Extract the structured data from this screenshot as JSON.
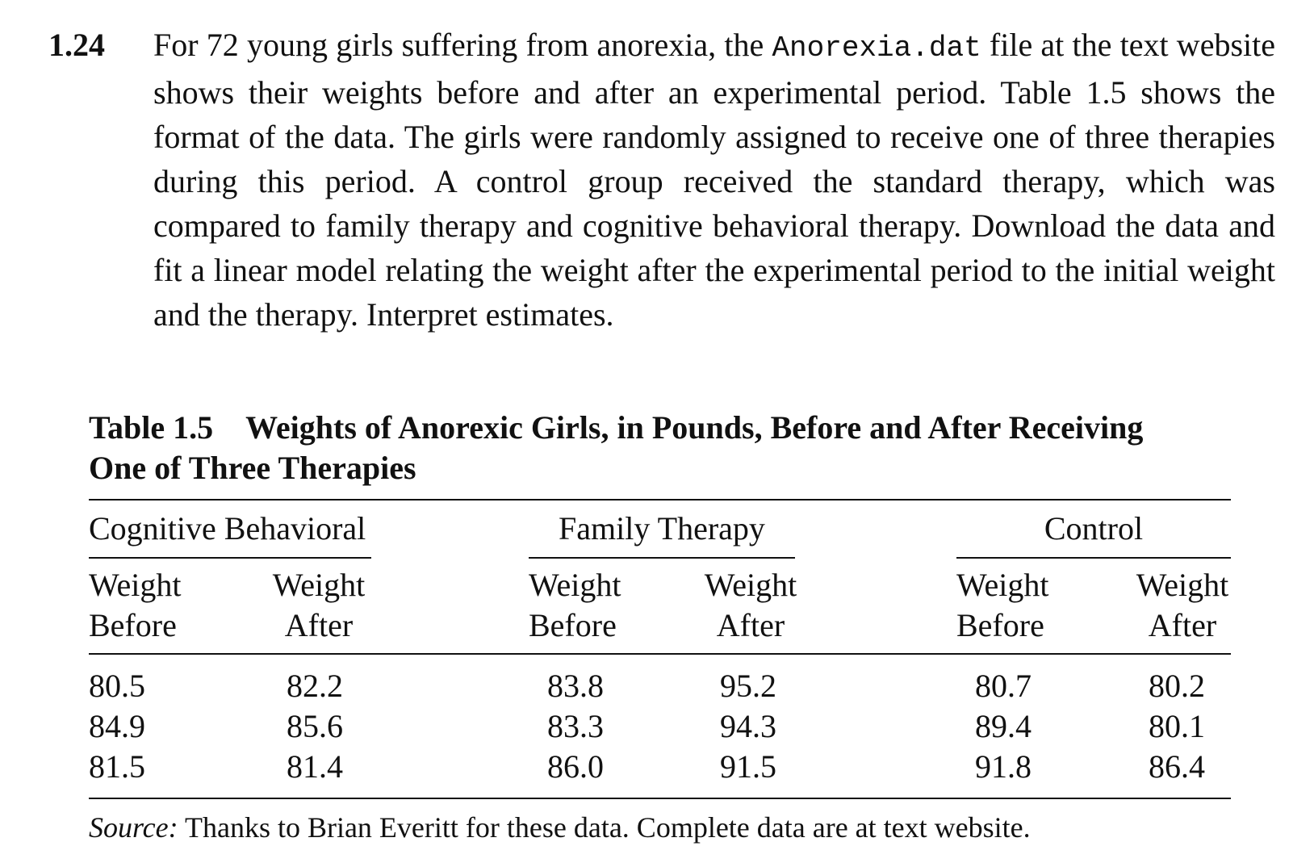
{
  "exercise": {
    "number": "1.24",
    "text_before_code": "For 72 young girls suffering from anorexia, the ",
    "code": "Anorexia.dat",
    "text_after_code": " file at the text website shows their weights before and after an experimental period. Table 1.5 shows the format of the data. The girls were randomly assigned to receive one of three therapies during this period. A control group received the standard therapy, which was compared to family therapy and cognitive behavioral therapy. Download the data and fit a linear model relating the weight after the experimental period to the initial weight and the therapy. Interpret estimates."
  },
  "table": {
    "label": "Table 1.5",
    "title_line1": "Weights of Anorexic Girls, in Pounds, Before and After Receiving",
    "title_line2": "One of Three Therapies",
    "groups": [
      "Cognitive Behavioral",
      "Family Therapy",
      "Control"
    ],
    "subheaders": {
      "before_line1": "Weight",
      "before_line2": "Before",
      "after_line1": "Weight",
      "after_line2": "After"
    },
    "columns": [
      [
        "80.5",
        "84.9",
        "81.5"
      ],
      [
        "82.2",
        "85.6",
        "81.4"
      ],
      [
        "83.8",
        "83.3",
        "86.0"
      ],
      [
        "95.2",
        "94.3",
        "91.5"
      ],
      [
        "80.7",
        "89.4",
        "91.8"
      ],
      [
        "80.2",
        "80.1",
        "86.4"
      ]
    ],
    "source_label": "Source:",
    "source_text": " Thanks to Brian Everitt for these data. Complete data are at text website."
  }
}
